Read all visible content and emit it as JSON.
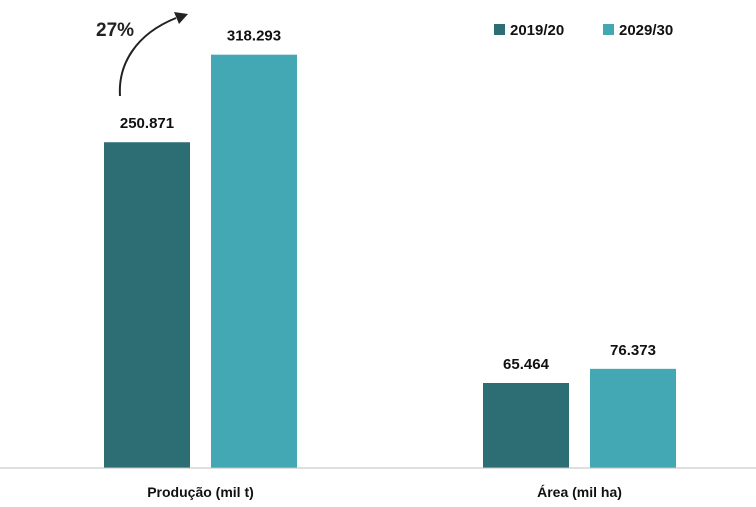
{
  "chart_data": {
    "type": "bar",
    "categories": [
      "Produção (mil t)",
      "Área (mil ha)"
    ],
    "series": [
      {
        "name": "2019/20",
        "color": "#2d6e74",
        "values": [
          250.871,
          65.464
        ],
        "labels": [
          "250.871",
          "65.464"
        ]
      },
      {
        "name": "2029/30",
        "color": "#43a7b4",
        "values": [
          318.293,
          76.373
        ],
        "labels": [
          "318.293",
          "76.373"
        ]
      }
    ],
    "annotation": {
      "text": "27%",
      "category_index": 0,
      "arrow": "curved-up-right"
    },
    "legend_position": "top-right",
    "ylim": [
      0,
      345
    ],
    "grid": false,
    "y_axis_visible": false
  }
}
